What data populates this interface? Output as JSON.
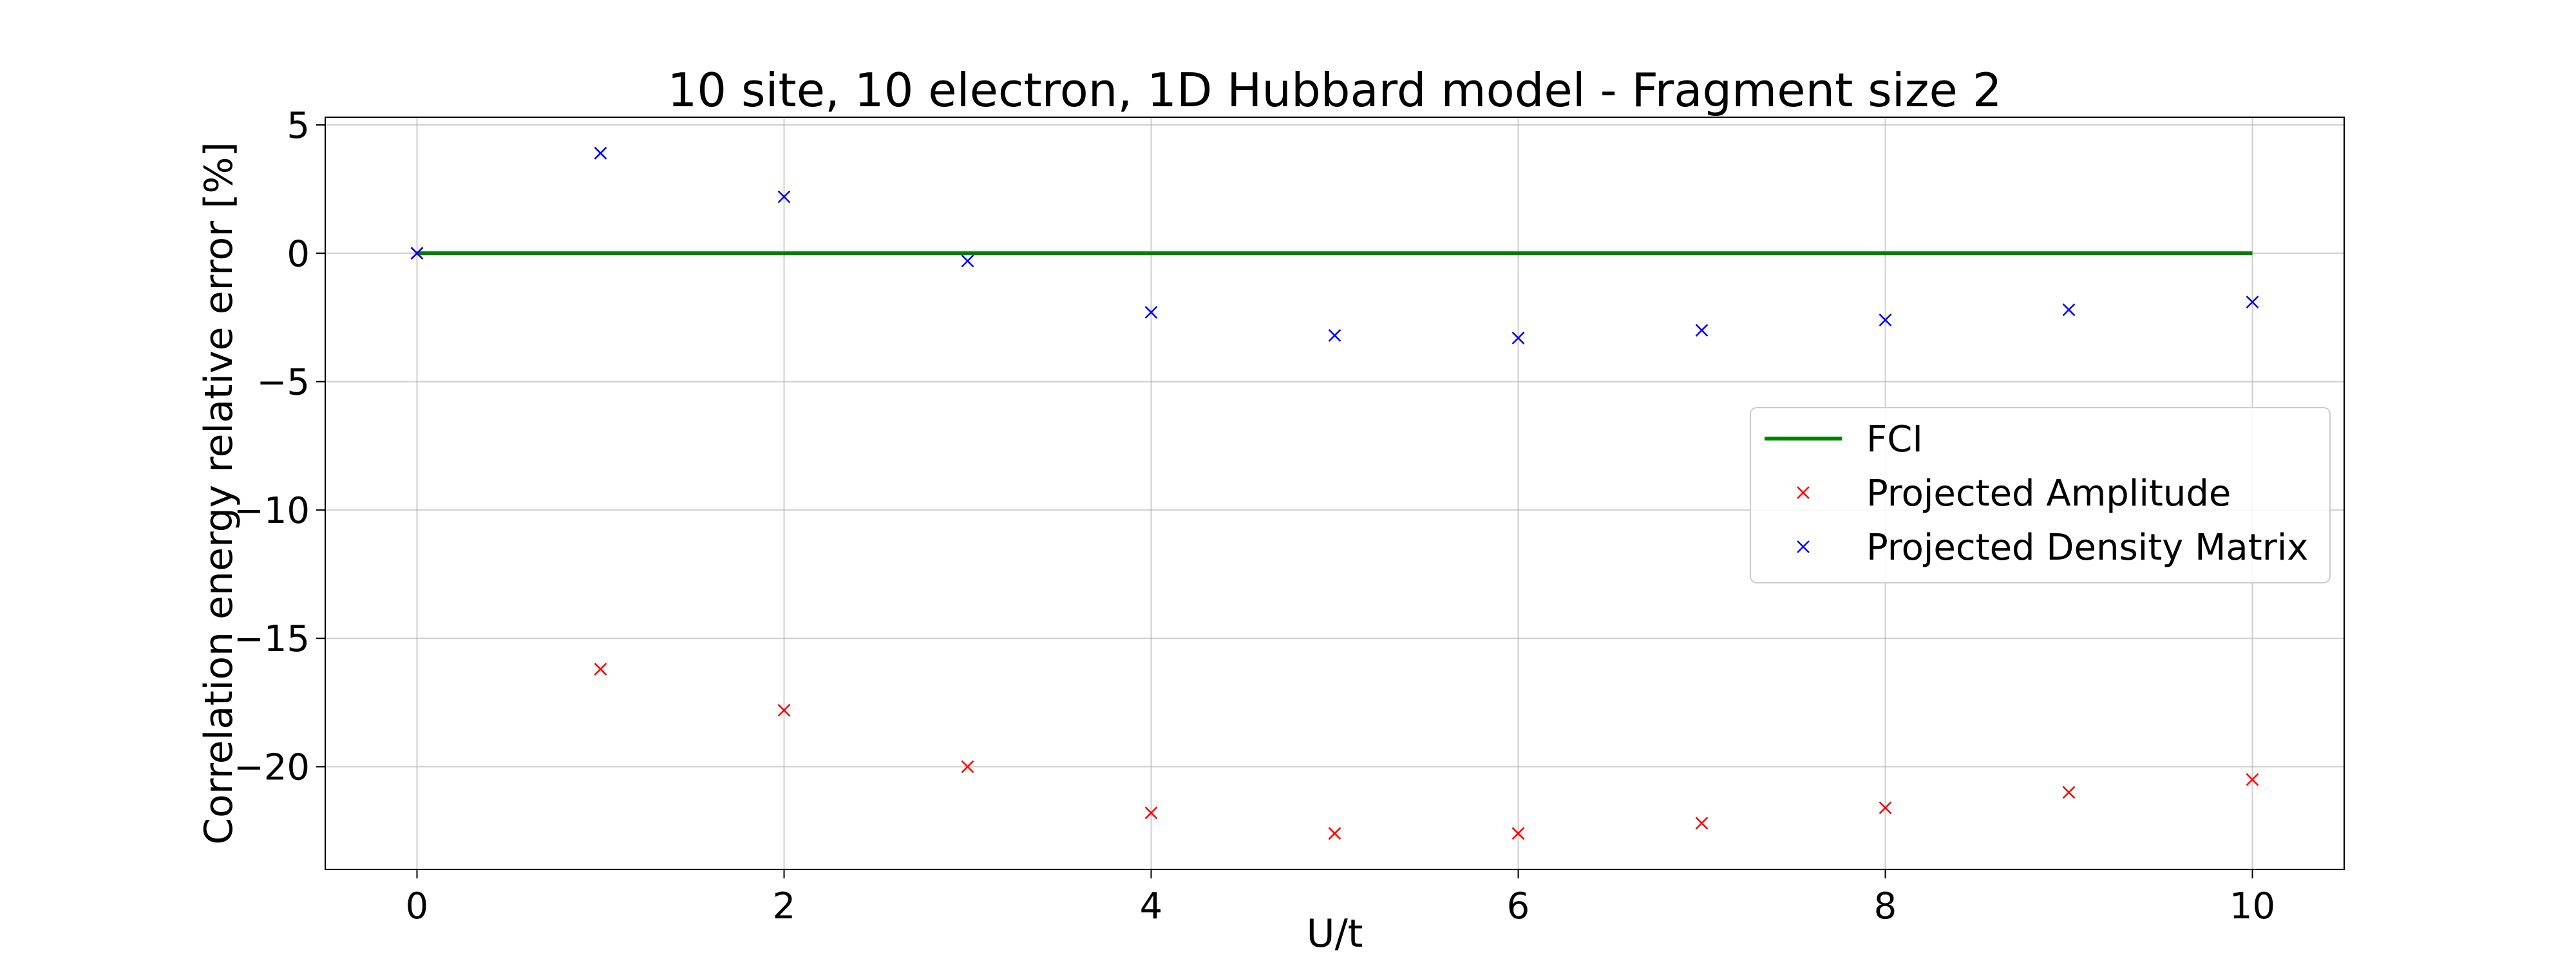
{
  "chart_data": {
    "type": "scatter",
    "title": "10 site, 10 electron, 1D Hubbard model - Fragment size 2",
    "xlabel": "U/t",
    "ylabel": "Correlation energy relative error [%]",
    "xlim": [
      -0.5,
      10.5
    ],
    "ylim": [
      -24,
      5.3
    ],
    "xticks": [
      0,
      2,
      4,
      6,
      8,
      10
    ],
    "yticks": [
      5,
      0,
      -5,
      -10,
      -15,
      -20
    ],
    "grid": true,
    "legend_position": "right",
    "series": [
      {
        "name": "FCI",
        "kind": "line",
        "color": "#008000",
        "x": [
          0,
          10
        ],
        "y": [
          0,
          0
        ]
      },
      {
        "name": "Projected Amplitude",
        "kind": "marker-x",
        "color": "#ff0000",
        "x": [
          0,
          1,
          2,
          3,
          4,
          5,
          6,
          7,
          8,
          9,
          10
        ],
        "y": [
          0.0,
          -16.2,
          -17.8,
          -20.0,
          -21.8,
          -22.6,
          -22.6,
          -22.2,
          -21.6,
          -21.0,
          -20.5
        ]
      },
      {
        "name": "Projected Density Matrix",
        "kind": "marker-x",
        "color": "#0000ff",
        "x": [
          0,
          1,
          2,
          3,
          4,
          5,
          6,
          7,
          8,
          9,
          10
        ],
        "y": [
          0.0,
          3.9,
          2.2,
          -0.3,
          -2.3,
          -3.2,
          -3.3,
          -3.0,
          -2.6,
          -2.2,
          -1.9
        ]
      }
    ]
  }
}
